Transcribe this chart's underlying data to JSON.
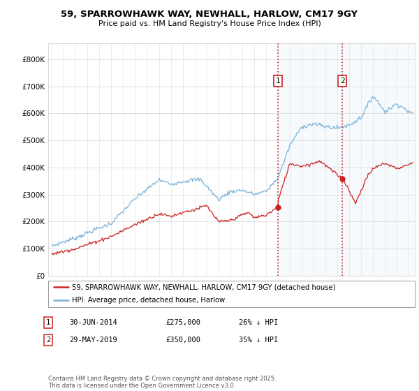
{
  "title": "59, SPARROWHAWK WAY, NEWHALL, HARLOW, CM17 9GY",
  "subtitle": "Price paid vs. HM Land Registry's House Price Index (HPI)",
  "hpi_color": "#7ab4d8",
  "price_color": "#cc2222",
  "background_color": "#ffffff",
  "plot_bg": "#ffffff",
  "ylim_min": 0,
  "ylim_max": 860000,
  "yticks": [
    0,
    100000,
    200000,
    300000,
    400000,
    500000,
    600000,
    700000,
    800000
  ],
  "ytick_labels": [
    "£0",
    "£100K",
    "£200K",
    "£300K",
    "£400K",
    "£500K",
    "£600K",
    "£700K",
    "£800K"
  ],
  "transaction1": {
    "date": "30-JUN-2014",
    "price": 275000,
    "pct": "26%",
    "label": "1",
    "year": 2014.0
  },
  "transaction2": {
    "date": "29-MAY-2019",
    "price": 350000,
    "pct": "35%",
    "label": "2",
    "year": 2019.4
  },
  "legend_label_red": "59, SPARROWHAWK WAY, NEWHALL, HARLOW, CM17 9GY (detached house)",
  "legend_label_blue": "HPI: Average price, detached house, Harlow",
  "footer": "Contains HM Land Registry data © Crown copyright and database right 2025.\nThis data is licensed under the Open Government Licence v3.0.",
  "xmin": 1995.0,
  "xmax": 2025.3
}
